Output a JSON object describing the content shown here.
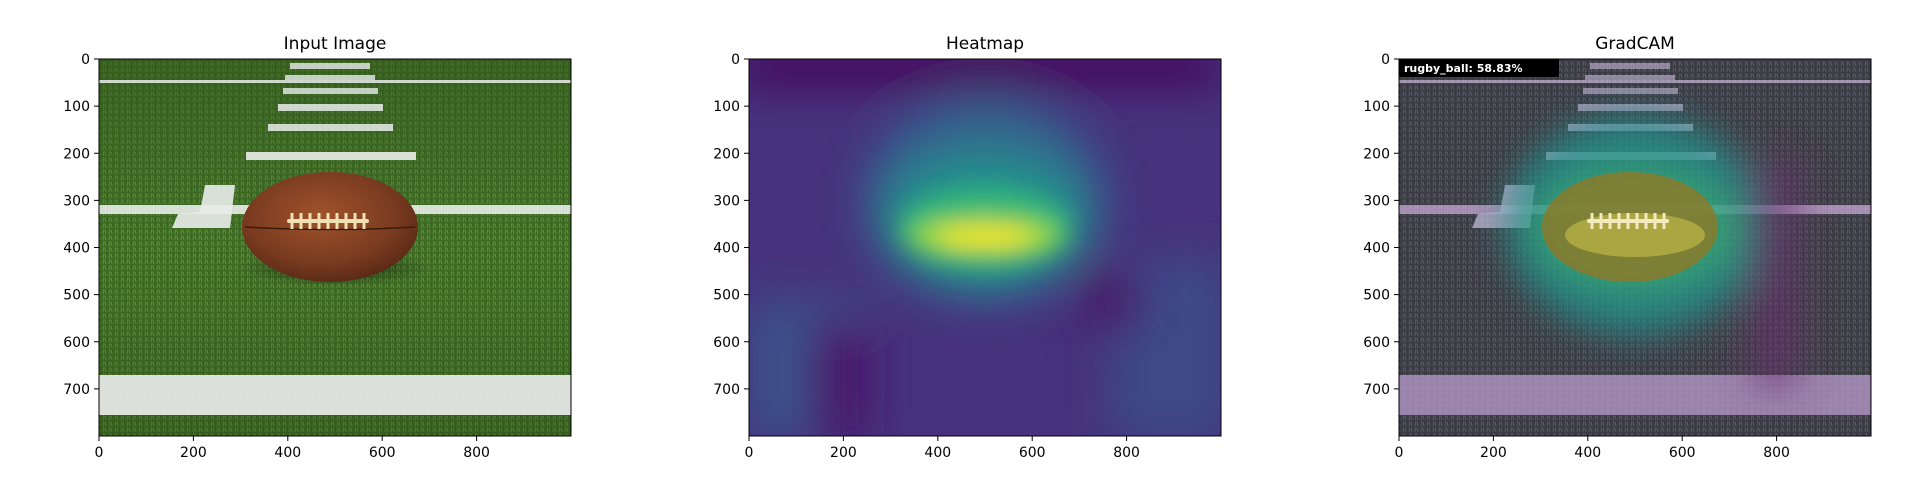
{
  "figure": {
    "background": "#ffffff"
  },
  "panels": [
    {
      "title": "Input Image",
      "content": "photo",
      "x_ticks": [
        "0",
        "200",
        "400",
        "600",
        "800"
      ],
      "y_ticks": [
        "0",
        "100",
        "200",
        "300",
        "400",
        "500",
        "600",
        "700"
      ]
    },
    {
      "title": "Heatmap",
      "content": "heatmap",
      "x_ticks": [
        "0",
        "200",
        "400",
        "600",
        "800"
      ],
      "y_ticks": [
        "0",
        "100",
        "200",
        "300",
        "400",
        "500",
        "600",
        "700"
      ]
    },
    {
      "title": "GradCAM",
      "content": "overlay",
      "prediction_label": "rugby_ball:  58.83%",
      "x_ticks": [
        "0",
        "200",
        "400",
        "600",
        "800"
      ],
      "y_ticks": [
        "0",
        "100",
        "200",
        "300",
        "400",
        "500",
        "600",
        "700"
      ]
    }
  ],
  "axis": {
    "x_range": [
      0,
      1000
    ],
    "y_range": [
      0,
      800
    ],
    "x_tick_values": [
      0,
      200,
      400,
      600,
      800
    ],
    "y_tick_values": [
      0,
      100,
      200,
      300,
      400,
      500,
      600,
      700
    ]
  },
  "colors": {
    "turf_dark": "#2f5a1c",
    "turf_light": "#5c8a34",
    "field_line": "#e9ecea",
    "ball_leather": "#7a3b20",
    "ball_highlight": "#a0532c",
    "laces": "#efe1b4",
    "viridis_low": "#440154",
    "viridis_mid1": "#31688e",
    "viridis_mid2": "#35b779",
    "viridis_high": "#fde725",
    "label_box": "#000000",
    "label_text": "#ffffff"
  }
}
